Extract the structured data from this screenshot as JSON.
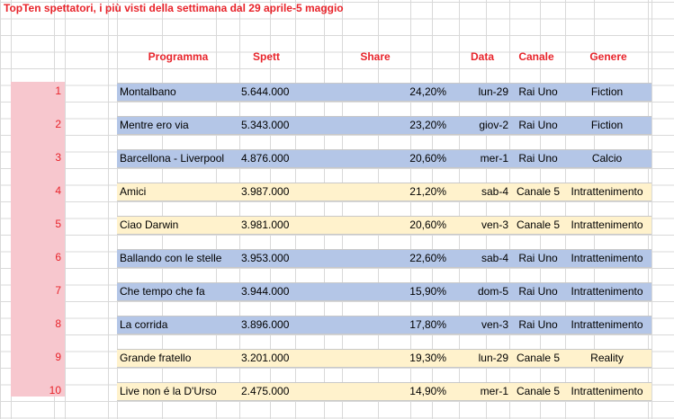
{
  "title": "TopTen spettatori, i più visti della settimana dal 29 aprile-5 maggio",
  "headers": {
    "programma": "Programma",
    "spett": "Spett",
    "share": "Share",
    "data": "Data",
    "canale": "Canale",
    "genere": "Genere"
  },
  "rows": [
    {
      "rank": "1",
      "programma": "Montalbano",
      "spett": "5.644.000",
      "share": "24,20%",
      "data": "lun-29",
      "canale": "Rai Uno",
      "genere": "Fiction",
      "color": "#b4c6e7"
    },
    {
      "rank": "2",
      "programma": "Mentre ero via",
      "spett": "5.343.000",
      "share": "23,20%",
      "data": "giov-2",
      "canale": "Rai Uno",
      "genere": "Fiction",
      "color": "#b4c6e7"
    },
    {
      "rank": "3",
      "programma": "Barcellona - Liverpool",
      "spett": "4.876.000",
      "share": "20,60%",
      "data": "mer-1",
      "canale": "Rai Uno",
      "genere": "Calcio",
      "color": "#b4c6e7"
    },
    {
      "rank": "4",
      "programma": "Amici",
      "spett": "3.987.000",
      "share": "21,20%",
      "data": "sab-4",
      "canale": "Canale 5",
      "genere": "Intrattenimento",
      "color": "#fff2cc"
    },
    {
      "rank": "5",
      "programma": "Ciao Darwin",
      "spett": "3.981.000",
      "share": "20,60%",
      "data": "ven-3",
      "canale": "Canale 5",
      "genere": "Intrattenimento",
      "color": "#fff2cc"
    },
    {
      "rank": "6",
      "programma": "Ballando con le stelle",
      "spett": "3.953.000",
      "share": "22,60%",
      "data": "sab-4",
      "canale": "Rai Uno",
      "genere": "Intrattenimento",
      "color": "#b4c6e7"
    },
    {
      "rank": "7",
      "programma": "Che tempo che fa",
      "spett": "3.944.000",
      "share": "15,90%",
      "data": "dom-5",
      "canale": "Rai Uno",
      "genere": "Intrattenimento",
      "color": "#b4c6e7"
    },
    {
      "rank": "8",
      "programma": "La corrida",
      "spett": "3.896.000",
      "share": "17,80%",
      "data": "ven-3",
      "canale": "Rai Uno",
      "genere": "Intrattenimento",
      "color": "#b4c6e7"
    },
    {
      "rank": "9",
      "programma": "Grande fratello",
      "spett": "3.201.000",
      "share": "19,30%",
      "data": "lun-29",
      "canale": "Canale 5",
      "genere": "Reality",
      "color": "#fff2cc"
    },
    {
      "rank": "10",
      "programma": "Live non é la D'Urso",
      "spett": "2.475.000",
      "share": "14,90%",
      "data": "mer-1",
      "canale": "Canale 5",
      "genere": "Intrattenimento",
      "color": "#fff2cc"
    }
  ],
  "colors": {
    "accent_red": "#e8242b",
    "rank_pink": "#f7c7ce",
    "rai_blue": "#b4c6e7",
    "mediaset_yellow": "#fff2cc"
  }
}
